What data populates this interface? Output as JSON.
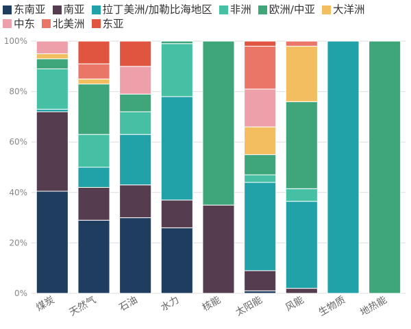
{
  "chart_data": {
    "type": "bar",
    "stacked": true,
    "normalized": true,
    "categories": [
      "煤炭",
      "天然气",
      "石油",
      "水力",
      "核能",
      "太阳能",
      "风能",
      "生物质",
      "地热能"
    ],
    "ylim": [
      0,
      100
    ],
    "yticks": [
      "0%",
      "20%",
      "40%",
      "60%",
      "80%",
      "100%"
    ],
    "ytick_values": [
      0,
      20,
      40,
      60,
      80,
      100
    ],
    "grid": "horizontal",
    "legend_position": "top-left",
    "series": [
      {
        "name": "东南亚",
        "color": "#1f3d5f",
        "values": [
          40.5,
          29,
          30,
          26,
          0,
          1,
          0,
          0,
          0
        ]
      },
      {
        "name": "南亚",
        "color": "#553d4f",
        "values": [
          31.5,
          13,
          13,
          11,
          35,
          8,
          2,
          0,
          0
        ]
      },
      {
        "name": "拉丁美洲/加勒比海地区",
        "color": "#21a2a8",
        "values": [
          1,
          8,
          20,
          41,
          0,
          35,
          34.5,
          100,
          0
        ]
      },
      {
        "name": "非洲",
        "color": "#46c0a5",
        "values": [
          16,
          13,
          9,
          21,
          0,
          3,
          5,
          0,
          0
        ]
      },
      {
        "name": "欧洲/中亚",
        "color": "#3ea67a",
        "values": [
          4,
          20,
          7,
          1,
          65,
          8,
          34.5,
          0,
          100
        ]
      },
      {
        "name": "大洋洲",
        "color": "#f3be5f",
        "values": [
          2,
          2,
          0,
          0,
          0,
          11,
          22,
          0,
          0
        ]
      },
      {
        "name": "中东",
        "color": "#eda0aa",
        "values": [
          5,
          0,
          11,
          0,
          0,
          15,
          0,
          0,
          0
        ]
      },
      {
        "name": "北美洲",
        "color": "#ea7668",
        "values": [
          0,
          6,
          0,
          0,
          0,
          17,
          2,
          0,
          0
        ]
      },
      {
        "name": "东亚",
        "color": "#e05540",
        "values": [
          0,
          9,
          10,
          0,
          0,
          2,
          0,
          0,
          0
        ]
      }
    ]
  }
}
